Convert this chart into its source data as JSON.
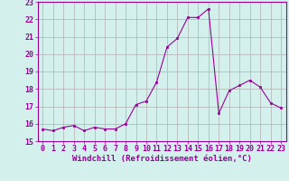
{
  "x": [
    0,
    1,
    2,
    3,
    4,
    5,
    6,
    7,
    8,
    9,
    10,
    11,
    12,
    13,
    14,
    15,
    16,
    17,
    18,
    19,
    20,
    21,
    22,
    23
  ],
  "y": [
    15.7,
    15.6,
    15.8,
    15.9,
    15.6,
    15.8,
    15.7,
    15.7,
    16.0,
    17.1,
    17.3,
    18.4,
    20.4,
    20.9,
    22.1,
    22.1,
    22.6,
    16.6,
    17.9,
    18.2,
    18.5,
    18.1,
    17.2,
    16.9
  ],
  "line_color": "#990099",
  "marker": "s",
  "markersize": 2.0,
  "linewidth": 0.8,
  "xlabel": "Windchill (Refroidissement éolien,°C)",
  "xlabel_fontsize": 6.5,
  "tick_fontsize": 6.0,
  "ylim": [
    15,
    23
  ],
  "xlim": [
    -0.5,
    23.5
  ],
  "yticks": [
    15,
    16,
    17,
    18,
    19,
    20,
    21,
    22,
    23
  ],
  "xticks": [
    0,
    1,
    2,
    3,
    4,
    5,
    6,
    7,
    8,
    9,
    10,
    11,
    12,
    13,
    14,
    15,
    16,
    17,
    18,
    19,
    20,
    21,
    22,
    23
  ],
  "bg_color": "#d4f0ec",
  "grid_color": "#b0b0b0"
}
